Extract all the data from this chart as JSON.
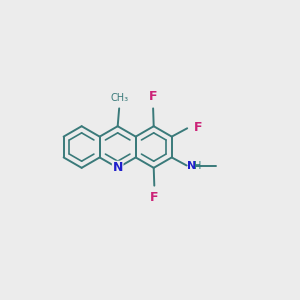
{
  "bg_color": "#ececec",
  "bond_color": "#3a7a7a",
  "N_color": "#2020cc",
  "F_color": "#cc2277",
  "NH_color": "#2a7a7a",
  "propyl_color": "#3a7a7a",
  "bond_lw": 1.4,
  "inner_lw": 1.2,
  "font_size_F": 9,
  "font_size_N": 9,
  "font_size_NH": 8,
  "font_size_methyl": 7,
  "ring_r": 0.7,
  "xlim": [
    0,
    10
  ],
  "ylim": [
    0,
    10
  ]
}
